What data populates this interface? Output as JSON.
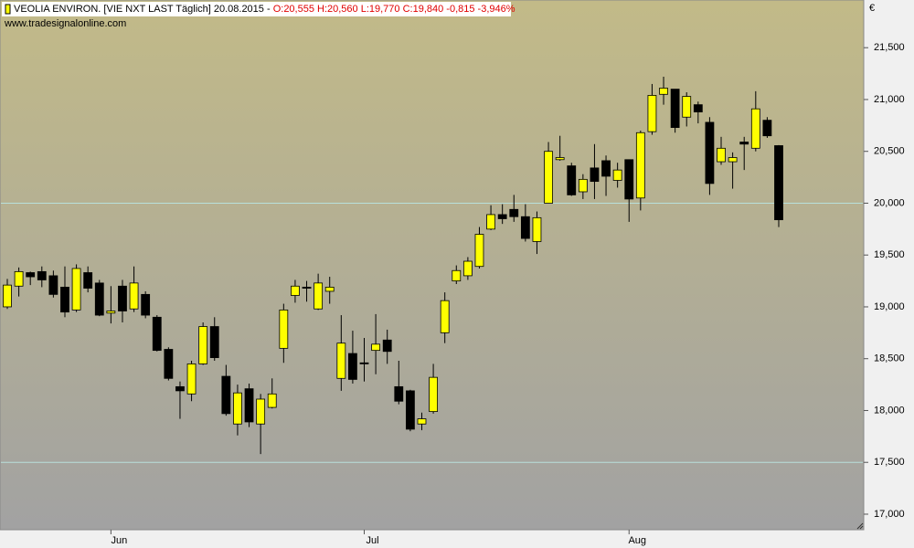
{
  "chart_data": {
    "type": "candlestick",
    "title": "VEOLIA ENVIRON. [VIE NXT LAST Täglich] 20.08.2015 -",
    "quote": "O:20,555 H:20,560 L:19,770 C:19,840 -0,815 -3,946%",
    "subtitle": "www.tradesignalonline.com",
    "y_unit": "€",
    "categories": [
      null,
      null,
      null,
      null,
      null,
      null,
      null,
      null,
      null,
      "Jun",
      null,
      null,
      null,
      null,
      null,
      null,
      null,
      null,
      null,
      null,
      null,
      null,
      null,
      null,
      null,
      null,
      null,
      null,
      null,
      null,
      null,
      "Jul",
      null,
      null,
      null,
      null,
      null,
      null,
      null,
      null,
      null,
      null,
      null,
      null,
      null,
      null,
      null,
      null,
      null,
      null,
      null,
      null,
      null,
      null,
      "Aug",
      null,
      null,
      null,
      null,
      null,
      null,
      null,
      null,
      null,
      null,
      null,
      null,
      null
    ],
    "open": [
      19000,
      19200,
      19330,
      19340,
      19300,
      19190,
      18970,
      19330,
      19230,
      18940,
      19200,
      18980,
      19120,
      18900,
      18590,
      18230,
      18160,
      18450,
      18810,
      18330,
      17870,
      18210,
      17870,
      18030,
      18600,
      19110,
      19190,
      18980,
      19150,
      18310,
      18550,
      18460,
      18580,
      18680,
      18230,
      18190,
      17870,
      17990,
      18750,
      19250,
      19300,
      19390,
      19750,
      19890,
      19940,
      19870,
      19630,
      20000,
      20420,
      20360,
      20110,
      20340,
      20410,
      20220,
      20420,
      20050,
      20690,
      21050,
      21100,
      20830,
      20950,
      20780,
      20400,
      20400,
      20590,
      20530,
      20800,
      20555
    ],
    "high": [
      19270,
      19380,
      19340,
      19390,
      19350,
      19390,
      19410,
      19390,
      19260,
      19200,
      19260,
      19390,
      19150,
      18920,
      18610,
      18280,
      18480,
      18850,
      18900,
      18440,
      18250,
      18260,
      18160,
      18310,
      19030,
      19260,
      19250,
      19320,
      19290,
      18920,
      18770,
      18700,
      18930,
      18780,
      18480,
      18200,
      17980,
      18450,
      19140,
      19400,
      19480,
      19770,
      19980,
      19990,
      20080,
      19990,
      19920,
      20590,
      20650,
      20390,
      20280,
      20570,
      20460,
      20390,
      20420,
      20700,
      21150,
      21220,
      21100,
      21070,
      20980,
      20830,
      20640,
      20490,
      20640,
      21080,
      20830,
      20560
    ],
    "low": [
      18980,
      19100,
      19210,
      19190,
      19090,
      18900,
      18950,
      19140,
      18910,
      18840,
      18850,
      18950,
      18890,
      18570,
      18290,
      17920,
      18090,
      18440,
      18480,
      17950,
      17760,
      17840,
      17580,
      18020,
      18460,
      19040,
      19050,
      18970,
      19030,
      18190,
      18260,
      18280,
      18350,
      18450,
      18060,
      17800,
      17810,
      17970,
      18650,
      19220,
      19260,
      19370,
      19740,
      19800,
      19820,
      19630,
      19510,
      20000,
      20410,
      20070,
      20040,
      20040,
      20070,
      20150,
      19820,
      19930,
      20660,
      20950,
      20680,
      20740,
      20770,
      20080,
      20370,
      20140,
      20320,
      20500,
      20630,
      19770
    ],
    "close": [
      19210,
      19340,
      19290,
      19260,
      19120,
      18950,
      19370,
      19180,
      18920,
      18960,
      18960,
      19230,
      18920,
      18580,
      18310,
      18190,
      18450,
      18810,
      18510,
      17970,
      18170,
      17890,
      18110,
      18160,
      18970,
      19200,
      19180,
      19230,
      19190,
      18650,
      18300,
      18450,
      18640,
      18570,
      18090,
      17820,
      17920,
      18320,
      19060,
      19350,
      19440,
      19700,
      19890,
      19850,
      19870,
      19660,
      19860,
      20500,
      20440,
      20080,
      20230,
      20210,
      20260,
      20320,
      20040,
      20680,
      21040,
      21110,
      20730,
      21030,
      20880,
      20190,
      20530,
      20440,
      20570,
      20910,
      20650,
      19840
    ],
    "up_color": "#ffff00",
    "down_color": "#000000",
    "ylim": [
      16850,
      21960
    ],
    "yticks": [
      {
        "value": 17000,
        "label": "17,000"
      },
      {
        "value": 17500,
        "label": "17,500"
      },
      {
        "value": 18000,
        "label": "18,000"
      },
      {
        "value": 18500,
        "label": "18,500"
      },
      {
        "value": 19000,
        "label": "19,000"
      },
      {
        "value": 19500,
        "label": "19,500"
      },
      {
        "value": 20000,
        "label": "20,000"
      },
      {
        "value": 20500,
        "label": "20,500"
      },
      {
        "value": 21000,
        "label": "21,000"
      },
      {
        "value": 21500,
        "label": "21,500"
      }
    ],
    "reference_lines": [
      20000,
      17500
    ],
    "reference_color": "#b8e0dc"
  }
}
